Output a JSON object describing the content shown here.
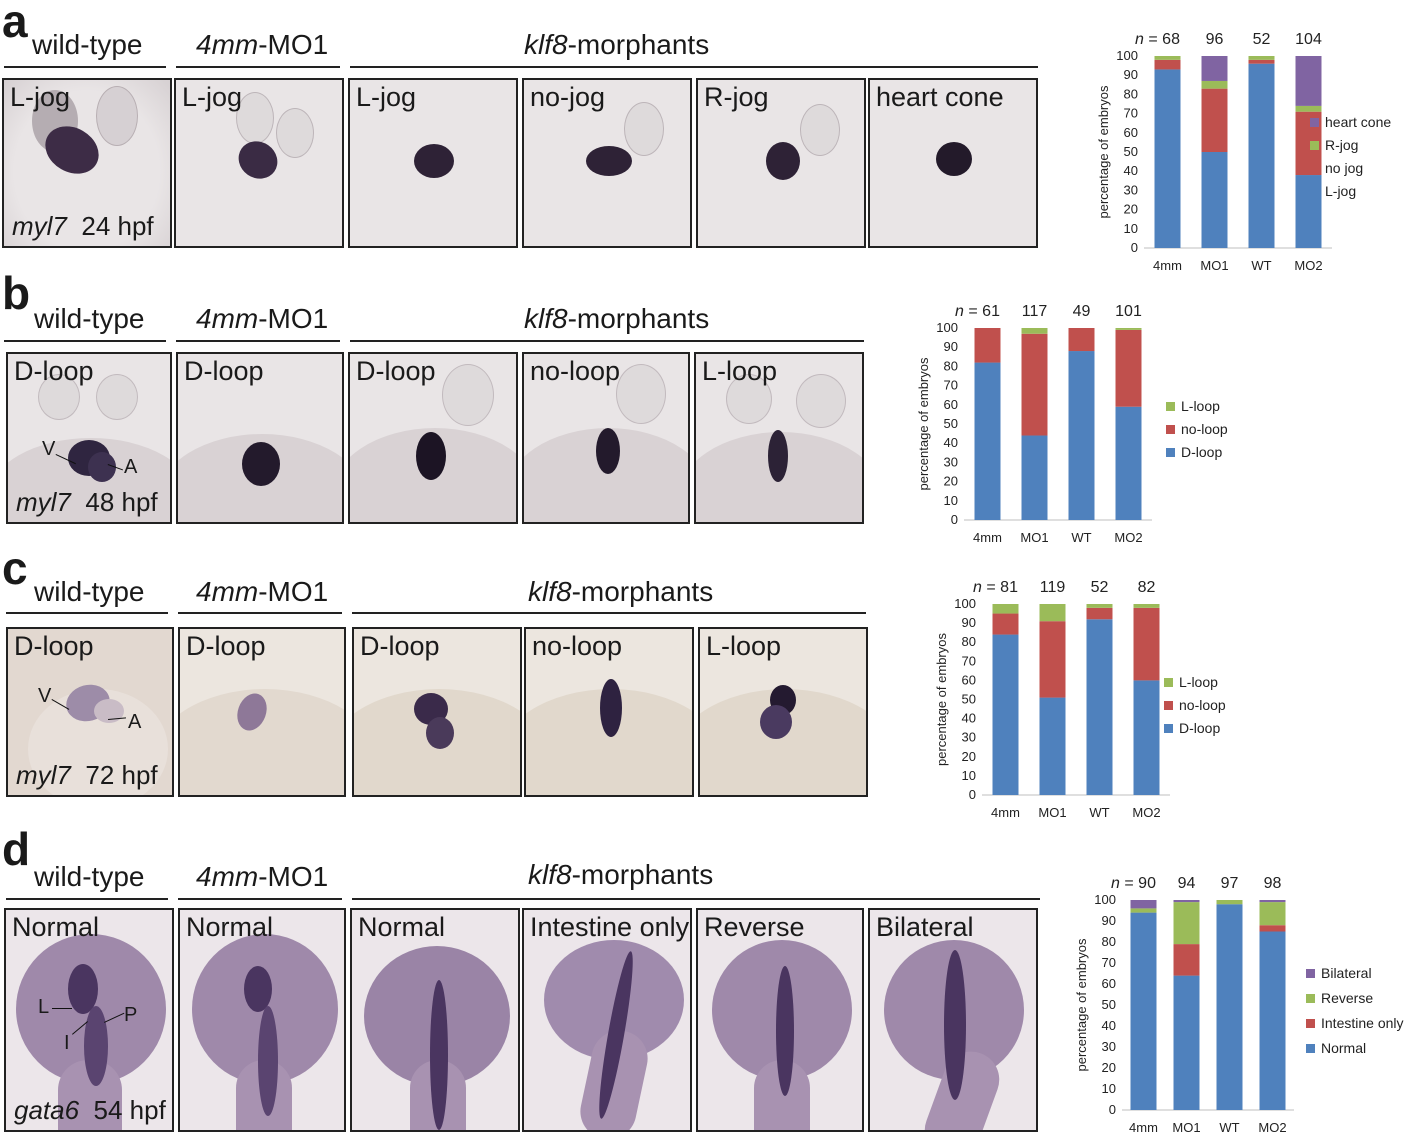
{
  "panels": [
    {
      "id": "a",
      "label": "a",
      "headers": {
        "wt": "wild-type",
        "mm_italic": "4mm",
        "mm_rest": "-MO1",
        "klf_italic": "klf8",
        "klf_rest": "-morphants"
      },
      "images": [
        {
          "label": "L-jog",
          "caption_gene": "myl7",
          "caption_stage": "24 hpf"
        },
        {
          "label": "L-jog"
        },
        {
          "label": "L-jog"
        },
        {
          "label": "no-jog"
        },
        {
          "label": "R-jog"
        },
        {
          "label": "heart cone"
        }
      ]
    },
    {
      "id": "b",
      "label": "b",
      "headers": {
        "wt": "wild-type",
        "mm_italic": "4mm",
        "mm_rest": "-MO1",
        "klf_italic": "klf8",
        "klf_rest": "-morphants"
      },
      "images": [
        {
          "label": "D-loop",
          "caption_gene": "myl7",
          "caption_stage": "48 hpf",
          "markers": [
            "V",
            "A"
          ]
        },
        {
          "label": "D-loop"
        },
        {
          "label": "D-loop"
        },
        {
          "label": "no-loop"
        },
        {
          "label": "L-loop"
        }
      ]
    },
    {
      "id": "c",
      "label": "c",
      "headers": {
        "wt": "wild-type",
        "mm_italic": "4mm",
        "mm_rest": "-MO1",
        "klf_italic": "klf8",
        "klf_rest": "-morphants"
      },
      "images": [
        {
          "label": "D-loop",
          "caption_gene": "myl7",
          "caption_stage": "72 hpf",
          "markers": [
            "V",
            "A"
          ]
        },
        {
          "label": "D-loop"
        },
        {
          "label": "D-loop"
        },
        {
          "label": "no-loop"
        },
        {
          "label": "L-loop"
        }
      ]
    },
    {
      "id": "d",
      "label": "d",
      "headers": {
        "wt": "wild-type",
        "mm_italic": "4mm",
        "mm_rest": "-MO1",
        "klf_italic": "klf8",
        "klf_rest": "-morphants"
      },
      "images": [
        {
          "label": "Normal",
          "caption_gene": "gata6",
          "caption_stage": "54 hpf",
          "markers": [
            "L",
            "P",
            "I"
          ]
        },
        {
          "label": "Normal"
        },
        {
          "label": "Normal"
        },
        {
          "label": "Intestine only"
        },
        {
          "label": "Reverse"
        },
        {
          "label": "Bilateral"
        }
      ]
    }
  ],
  "chart_data": [
    {
      "panel": "a",
      "type": "bar",
      "stacked": true,
      "categories": [
        "4mm",
        "MO1",
        "WT",
        "MO2"
      ],
      "n_label": "n",
      "n_values": [
        68,
        96,
        52,
        104
      ],
      "ylabel": "percentage of embryos",
      "ylim": [
        0,
        100
      ],
      "yticks": [
        0,
        10,
        20,
        30,
        40,
        50,
        60,
        70,
        80,
        90,
        100
      ],
      "series": [
        {
          "name": "L-jog",
          "color": "#4f81bd",
          "values": [
            93,
            50,
            96,
            38
          ]
        },
        {
          "name": "no jog",
          "color": "#c0504d",
          "values": [
            5,
            33,
            2,
            33
          ]
        },
        {
          "name": "R-jog",
          "color": "#9bbb59",
          "values": [
            2,
            4,
            2,
            3
          ]
        },
        {
          "name": "heart cone",
          "color": "#8064a2",
          "values": [
            0,
            13,
            0,
            26
          ]
        }
      ],
      "legend_position": "right"
    },
    {
      "panel": "b",
      "type": "bar",
      "stacked": true,
      "categories": [
        "4mm",
        "MO1",
        "WT",
        "MO2"
      ],
      "n_label": "n",
      "n_values": [
        61,
        117,
        49,
        101
      ],
      "ylabel": "percentage of embryos",
      "ylim": [
        0,
        100
      ],
      "yticks": [
        0,
        10,
        20,
        30,
        40,
        50,
        60,
        70,
        80,
        90,
        100
      ],
      "series": [
        {
          "name": "D-loop",
          "color": "#4f81bd",
          "values": [
            82,
            44,
            88,
            59
          ]
        },
        {
          "name": "no-loop",
          "color": "#c0504d",
          "values": [
            18,
            53,
            12,
            40
          ]
        },
        {
          "name": "L-loop",
          "color": "#9bbb59",
          "values": [
            0,
            3,
            0,
            1
          ]
        }
      ],
      "legend_position": "right"
    },
    {
      "panel": "c",
      "type": "bar",
      "stacked": true,
      "categories": [
        "4mm",
        "MO1",
        "WT",
        "MO2"
      ],
      "n_label": "n",
      "n_values": [
        81,
        119,
        52,
        82
      ],
      "ylabel": "percentage of embryos",
      "ylim": [
        0,
        100
      ],
      "yticks": [
        0,
        10,
        20,
        30,
        40,
        50,
        60,
        70,
        80,
        90,
        100
      ],
      "series": [
        {
          "name": "D-loop",
          "color": "#4f81bd",
          "values": [
            84,
            51,
            92,
            60
          ]
        },
        {
          "name": "no-loop",
          "color": "#c0504d",
          "values": [
            11,
            40,
            6,
            38
          ]
        },
        {
          "name": "L-loop",
          "color": "#9bbb59",
          "values": [
            5,
            9,
            2,
            2
          ]
        }
      ],
      "legend_position": "right"
    },
    {
      "panel": "d",
      "type": "bar",
      "stacked": true,
      "categories": [
        "4mm",
        "MO1",
        "WT",
        "MO2"
      ],
      "n_label": "n",
      "n_values": [
        90,
        94,
        97,
        98
      ],
      "ylabel": "percentage of embryos",
      "ylim": [
        0,
        100
      ],
      "yticks": [
        0,
        10,
        20,
        30,
        40,
        50,
        60,
        70,
        80,
        90,
        100
      ],
      "series": [
        {
          "name": "Normal",
          "color": "#4f81bd",
          "values": [
            94,
            64,
            98,
            85
          ]
        },
        {
          "name": "Intestine only",
          "color": "#c0504d",
          "values": [
            0,
            15,
            0,
            3
          ]
        },
        {
          "name": "Reverse",
          "color": "#9bbb59",
          "values": [
            2,
            20,
            2,
            11
          ]
        },
        {
          "name": "Bilateral",
          "color": "#8064a2",
          "values": [
            4,
            1,
            0,
            1
          ]
        }
      ],
      "legend_position": "right"
    }
  ]
}
